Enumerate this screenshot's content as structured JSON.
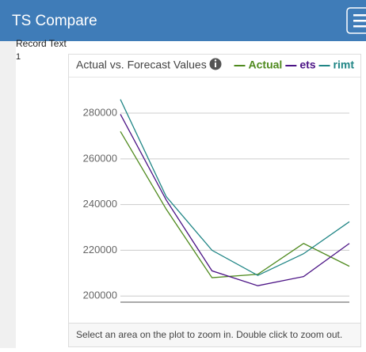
{
  "header": {
    "title": "TS Compare"
  },
  "record": {
    "label": "Record Text",
    "value": "1"
  },
  "chart_data": {
    "type": "line",
    "title": "Actual vs. Forecast Values",
    "categories": [
      null,
      null,
      null,
      null,
      null,
      null
    ],
    "series": [
      {
        "name": "Actual",
        "color": "#4f8a1e",
        "values": [
          272000,
          238000,
          208000,
          209500,
          223000,
          213000
        ]
      },
      {
        "name": "ets",
        "color": "#4b1385",
        "values": [
          279500,
          242000,
          211000,
          204500,
          208500,
          223000
        ]
      },
      {
        "name": "rimt",
        "color": "#1f8585",
        "values": [
          286000,
          243500,
          220000,
          209000,
          218500,
          232500
        ]
      }
    ],
    "ylim": [
      197300,
      289700
    ],
    "yticks": [
      200000,
      220000,
      240000,
      260000,
      280000
    ],
    "grid": true
  },
  "footer": {
    "hint": "Select an area on the plot to zoom in. Double click to zoom out."
  }
}
